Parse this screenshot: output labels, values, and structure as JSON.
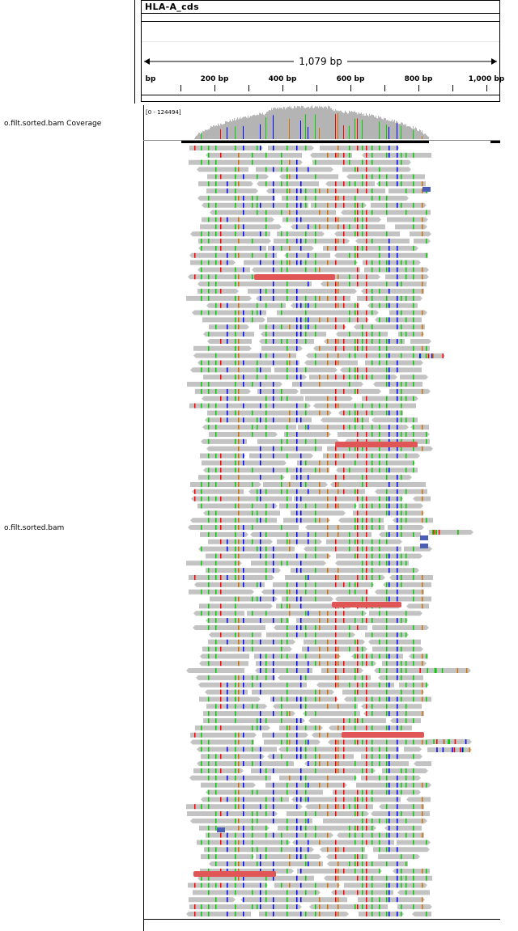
{
  "header": {
    "feature_name": "HLA-A_cds",
    "span_label": "1,079 bp",
    "ticks": [
      {
        "label": "bp",
        "pos": 0
      },
      {
        "label": "200 bp",
        "pos": 200
      },
      {
        "label": "400 bp",
        "pos": 400
      },
      {
        "label": "600 bp",
        "pos": 600
      },
      {
        "label": "800 bp",
        "pos": 800
      },
      {
        "label": "1,000 bp",
        "pos": 1000
      }
    ]
  },
  "tracks": {
    "coverage": {
      "name": "o.filt.sorted.bam Coverage",
      "range": "[0 - 124494]"
    },
    "alignment": {
      "name": "o.filt.sorted.bam"
    }
  },
  "colors": {
    "read": "#c3c3c3",
    "coverage": "#b4b4b4",
    "mismatch_a": "#00d000",
    "mismatch_c": "#0000ff",
    "mismatch_g": "#d17105",
    "mismatch_t": "#ff0000",
    "insertion_block": "#e05555",
    "soft_block": "#4a5fb5"
  }
}
